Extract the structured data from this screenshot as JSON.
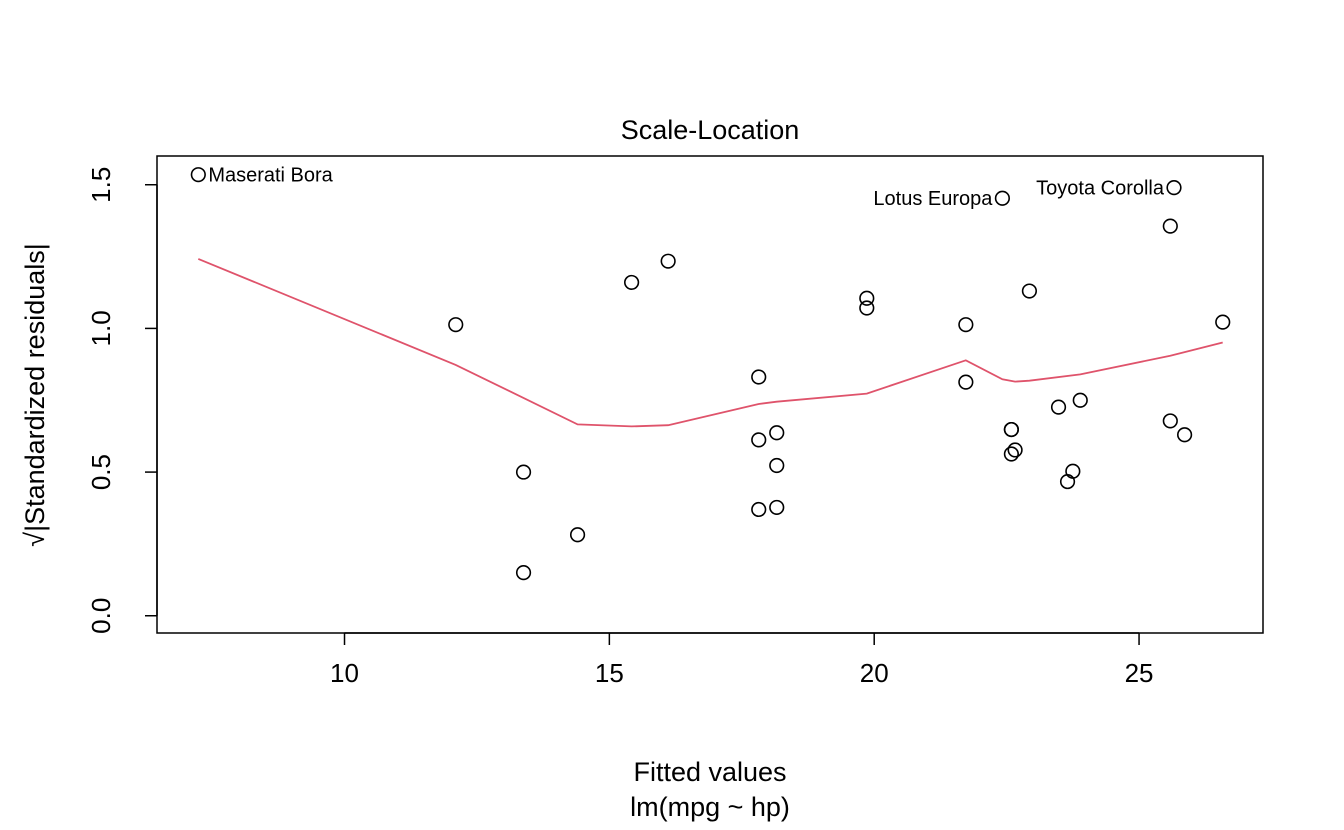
{
  "chart_data": {
    "type": "scatter",
    "title": "Scale-Location",
    "xlabel": "Fitted values",
    "subtitle": "lm(mpg ~ hp)",
    "ylabel": "√|Standardized residuals|",
    "xlim": [
      6.46,
      27.34
    ],
    "ylim": [
      -0.06,
      1.6
    ],
    "x_ticks": [
      10,
      15,
      20,
      25
    ],
    "y_ticks": [
      0.0,
      0.5,
      1.0,
      1.5
    ],
    "x_tick_labels": [
      "10",
      "15",
      "20",
      "25"
    ],
    "y_tick_labels": [
      "0.0",
      "0.5",
      "1.0",
      "1.5"
    ],
    "grid": false,
    "points": [
      {
        "x": 7.24,
        "y": 1.535,
        "label": "Maserati Bora"
      },
      {
        "x": 12.1,
        "y": 1.013,
        "label": ""
      },
      {
        "x": 13.38,
        "y": 0.5,
        "label": ""
      },
      {
        "x": 13.38,
        "y": 0.15,
        "label": ""
      },
      {
        "x": 14.4,
        "y": 0.282,
        "label": ""
      },
      {
        "x": 15.42,
        "y": 1.16,
        "label": ""
      },
      {
        "x": 16.11,
        "y": 1.234,
        "label": ""
      },
      {
        "x": 17.82,
        "y": 0.831,
        "label": ""
      },
      {
        "x": 17.82,
        "y": 0.612,
        "label": ""
      },
      {
        "x": 17.82,
        "y": 0.37,
        "label": ""
      },
      {
        "x": 18.16,
        "y": 0.637,
        "label": ""
      },
      {
        "x": 18.16,
        "y": 0.523,
        "label": ""
      },
      {
        "x": 18.16,
        "y": 0.377,
        "label": ""
      },
      {
        "x": 19.86,
        "y": 1.105,
        "label": ""
      },
      {
        "x": 19.86,
        "y": 1.071,
        "label": ""
      },
      {
        "x": 21.73,
        "y": 1.013,
        "label": ""
      },
      {
        "x": 21.73,
        "y": 0.813,
        "label": ""
      },
      {
        "x": 22.42,
        "y": 1.453,
        "label": "Lotus Europa"
      },
      {
        "x": 22.59,
        "y": 0.648,
        "label": ""
      },
      {
        "x": 22.59,
        "y": 0.648,
        "label": ""
      },
      {
        "x": 22.59,
        "y": 0.563,
        "label": ""
      },
      {
        "x": 22.66,
        "y": 0.577,
        "label": ""
      },
      {
        "x": 22.93,
        "y": 1.13,
        "label": ""
      },
      {
        "x": 23.48,
        "y": 0.726,
        "label": ""
      },
      {
        "x": 23.65,
        "y": 0.467,
        "label": ""
      },
      {
        "x": 23.75,
        "y": 0.503,
        "label": ""
      },
      {
        "x": 23.89,
        "y": 0.75,
        "label": ""
      },
      {
        "x": 25.59,
        "y": 1.356,
        "label": ""
      },
      {
        "x": 25.59,
        "y": 0.678,
        "label": ""
      },
      {
        "x": 25.66,
        "y": 1.49,
        "label": "Toyota Corolla"
      },
      {
        "x": 25.86,
        "y": 0.63,
        "label": ""
      },
      {
        "x": 26.58,
        "y": 1.022,
        "label": ""
      }
    ],
    "smoother": {
      "x": [
        7.24,
        12.1,
        14.4,
        15.42,
        16.11,
        17.82,
        18.16,
        19.86,
        21.73,
        22.42,
        22.66,
        22.93,
        23.89,
        25.59,
        26.58
      ],
      "y": [
        1.242,
        0.873,
        0.666,
        0.659,
        0.663,
        0.737,
        0.745,
        0.773,
        0.889,
        0.823,
        0.815,
        0.818,
        0.84,
        0.905,
        0.951
      ]
    },
    "colors": {
      "points": "#000000",
      "smoother": "#DF536B",
      "axes": "#000000"
    }
  }
}
